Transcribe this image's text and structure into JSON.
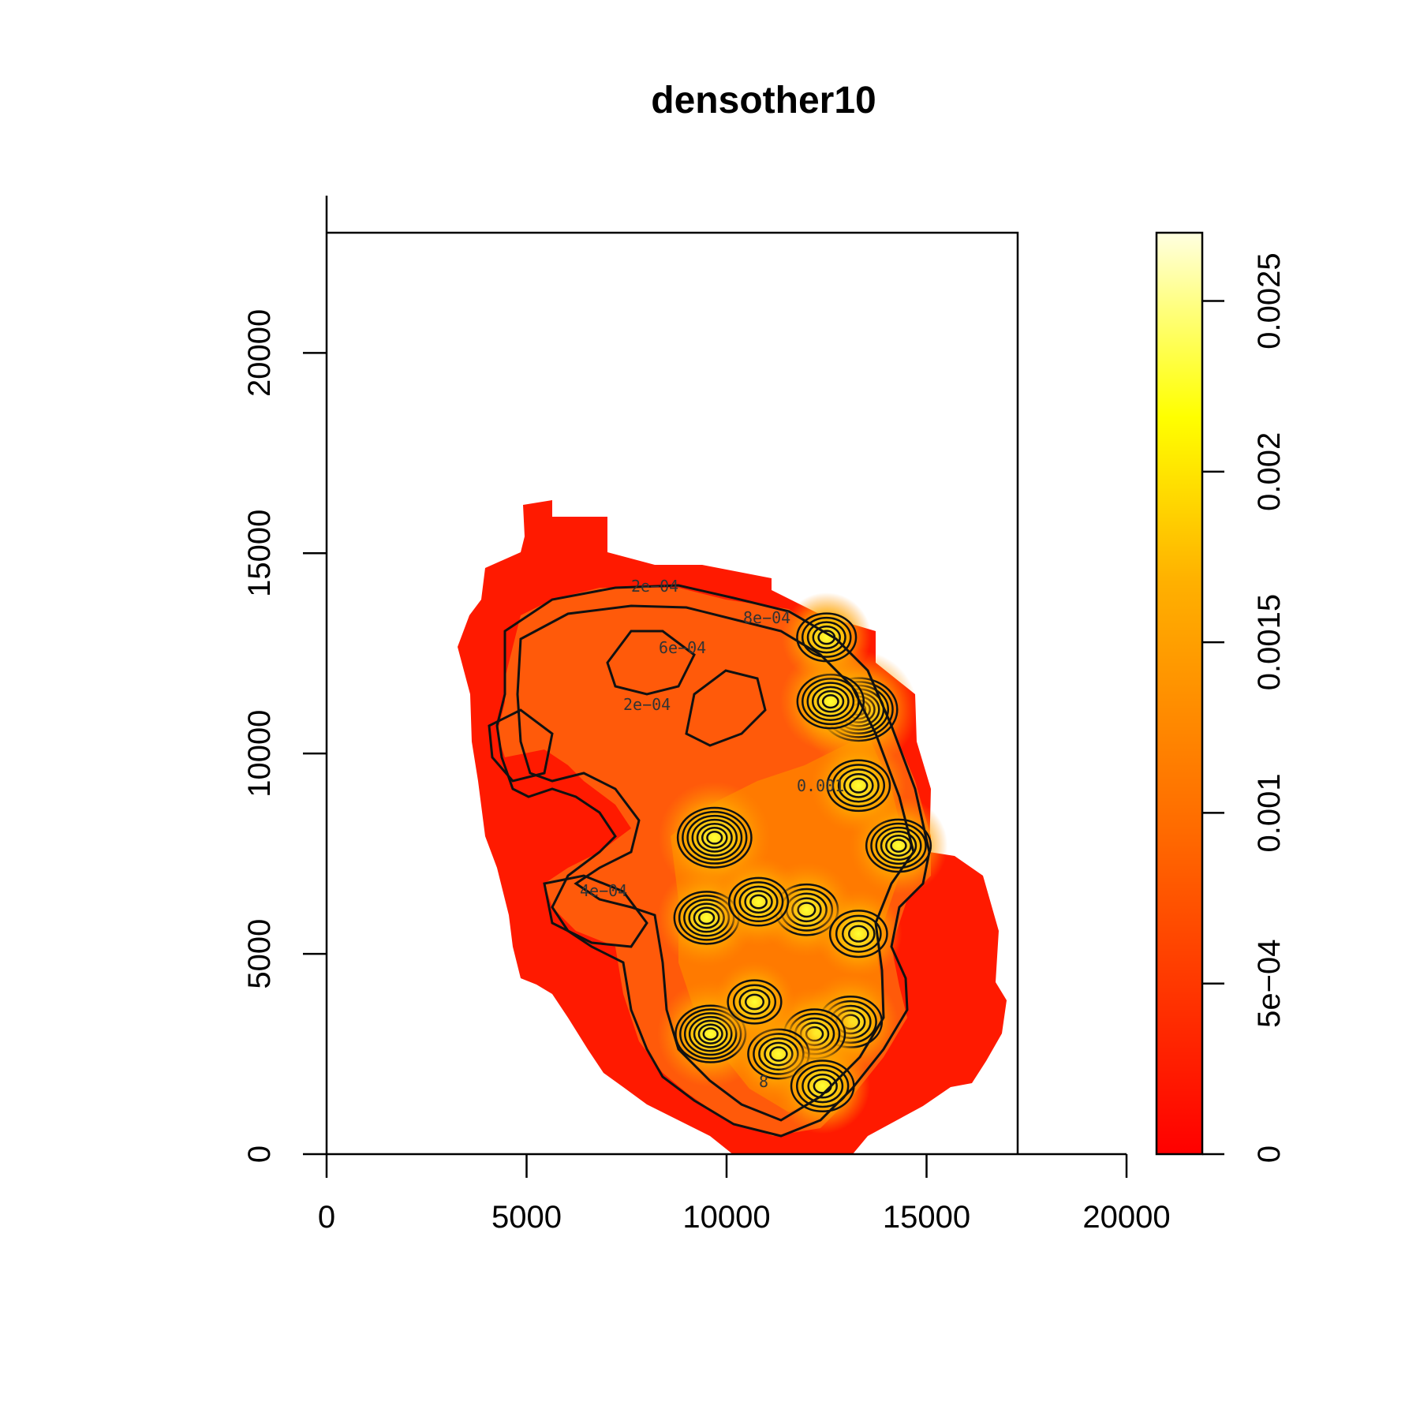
{
  "chart_data": {
    "type": "heatmap",
    "title": "densother10",
    "xlabel": "",
    "ylabel": "",
    "xlim": [
      0,
      20000
    ],
    "ylim": [
      0,
      23000
    ],
    "x_ticks": [
      "0",
      "5000",
      "10000",
      "15000",
      "20000"
    ],
    "y_ticks": [
      "0",
      "5000",
      "10000",
      "15000",
      "20000"
    ],
    "grid": false,
    "colorbar": {
      "range": [
        0,
        0.0027
      ],
      "ticks": [
        "0",
        "5e−04",
        "0.001",
        "0.0015",
        "0.002",
        "0.0025"
      ],
      "low_color": "#ff0000",
      "mid_color": "#ff8c00",
      "high_color": "#ffff00",
      "top_color": "#ffffe0"
    },
    "contour_labels": [
      "2e−04",
      "2e−04",
      "6e−04",
      "8e−04",
      "4e−04",
      "0.001",
      "8"
    ],
    "hotspots": [
      {
        "x": 9700,
        "y": 7900,
        "value": 0.0022
      },
      {
        "x": 13300,
        "y": 11100,
        "value": 0.0024
      },
      {
        "x": 9600,
        "y": 3000,
        "value": 0.002
      },
      {
        "x": 12600,
        "y": 11300,
        "value": 0.0018
      },
      {
        "x": 14300,
        "y": 7700,
        "value": 0.0017
      },
      {
        "x": 13300,
        "y": 9200,
        "value": 0.0016
      },
      {
        "x": 12000,
        "y": 6100,
        "value": 0.0016
      },
      {
        "x": 9500,
        "y": 5900,
        "value": 0.0017
      },
      {
        "x": 13100,
        "y": 3300,
        "value": 0.0016
      },
      {
        "x": 12200,
        "y": 3000,
        "value": 0.0015
      },
      {
        "x": 11300,
        "y": 2500,
        "value": 0.0015
      },
      {
        "x": 12400,
        "y": 1700,
        "value": 0.0016
      },
      {
        "x": 12500,
        "y": 12900,
        "value": 0.0014
      },
      {
        "x": 10800,
        "y": 6300,
        "value": 0.0014
      },
      {
        "x": 13300,
        "y": 5500,
        "value": 0.0013
      },
      {
        "x": 10700,
        "y": 3800,
        "value": 0.0011
      }
    ]
  }
}
